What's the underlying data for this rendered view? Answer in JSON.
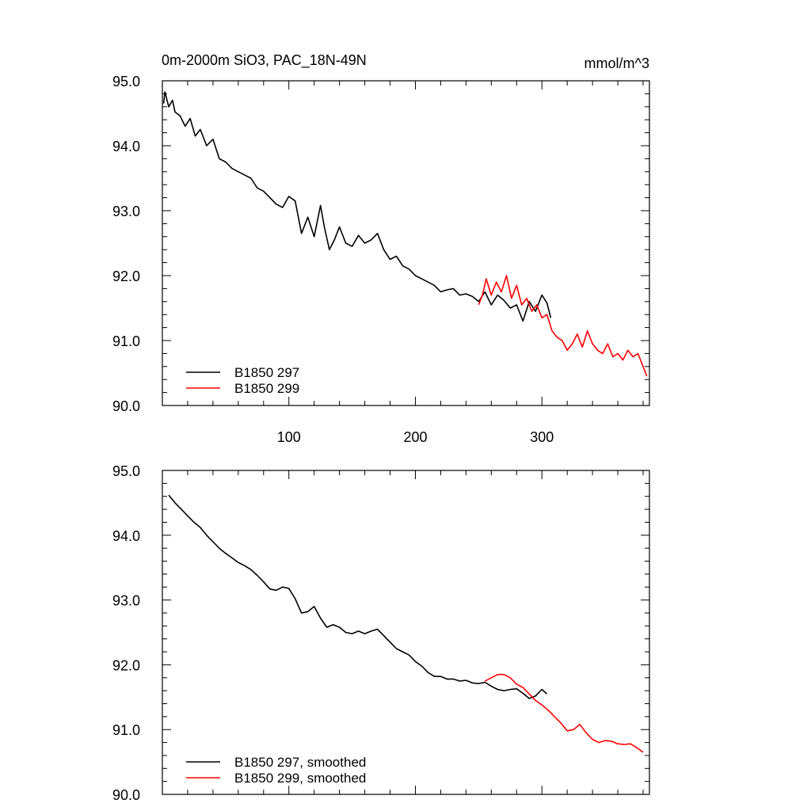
{
  "figure": {
    "title_left": "0m-2000m SiO3, PAC_18N-49N",
    "title_right": "mmol/m^3"
  },
  "chart_data": [
    {
      "type": "line",
      "title": "0m-2000m SiO3, PAC_18N-49N",
      "units": "mmol/m^3",
      "xlabel": "",
      "ylabel": "",
      "xlim": [
        0,
        385
      ],
      "ylim": [
        90.0,
        95.0
      ],
      "xticks": [
        100,
        200,
        300
      ],
      "xtick_labels": [
        "100",
        "200",
        "300"
      ],
      "yticks": [
        90.0,
        91.0,
        92.0,
        93.0,
        94.0,
        95.0
      ],
      "ytick_labels": [
        "90.0",
        "91.0",
        "92.0",
        "93.0",
        "94.0",
        "95.0"
      ],
      "legend_position": "bottom-left",
      "series": [
        {
          "name": "B1850 297",
          "color": "#000000",
          "x": [
            1,
            2,
            5,
            8,
            10,
            14,
            18,
            22,
            26,
            30,
            35,
            40,
            45,
            50,
            55,
            60,
            65,
            70,
            75,
            80,
            85,
            90,
            95,
            100,
            105,
            110,
            115,
            120,
            125,
            128,
            132,
            136,
            140,
            145,
            150,
            155,
            160,
            165,
            170,
            175,
            180,
            185,
            190,
            195,
            200,
            205,
            210,
            215,
            220,
            225,
            230,
            235,
            240,
            245,
            250,
            255,
            260,
            265,
            270,
            275,
            280,
            285,
            290,
            295,
            300,
            304,
            307
          ],
          "values": [
            94.65,
            94.83,
            94.6,
            94.7,
            94.52,
            94.46,
            94.3,
            94.42,
            94.15,
            94.25,
            94.0,
            94.1,
            93.8,
            93.75,
            93.65,
            93.6,
            93.55,
            93.5,
            93.35,
            93.3,
            93.2,
            93.1,
            93.05,
            93.22,
            93.15,
            92.65,
            92.9,
            92.6,
            93.08,
            92.75,
            92.4,
            92.55,
            92.75,
            92.5,
            92.45,
            92.62,
            92.5,
            92.55,
            92.65,
            92.4,
            92.25,
            92.3,
            92.15,
            92.1,
            92.0,
            91.95,
            91.9,
            91.85,
            91.75,
            91.78,
            91.8,
            91.7,
            91.72,
            91.68,
            91.6,
            91.75,
            91.55,
            91.7,
            91.62,
            91.5,
            91.55,
            91.3,
            91.6,
            91.45,
            91.7,
            91.58,
            91.35
          ]
        },
        {
          "name": "B1850 299",
          "color": "#ff0000",
          "x": [
            250,
            253,
            256,
            260,
            264,
            268,
            272,
            276,
            280,
            284,
            288,
            292,
            296,
            300,
            304,
            308,
            312,
            316,
            320,
            324,
            328,
            332,
            336,
            340,
            344,
            348,
            352,
            356,
            360,
            364,
            368,
            372,
            376,
            380,
            383
          ],
          "values": [
            91.55,
            91.7,
            91.95,
            91.7,
            91.9,
            91.75,
            92.0,
            91.65,
            91.85,
            91.55,
            91.65,
            91.45,
            91.55,
            91.35,
            91.4,
            91.15,
            91.05,
            91.0,
            90.85,
            90.95,
            91.1,
            90.9,
            91.15,
            90.95,
            90.85,
            90.8,
            90.95,
            90.75,
            90.8,
            90.7,
            90.85,
            90.75,
            90.8,
            90.6,
            90.45
          ]
        }
      ]
    },
    {
      "type": "line",
      "title": "",
      "xlabel": "",
      "ylabel": "",
      "xlim": [
        0,
        385
      ],
      "ylim": [
        90.0,
        95.0
      ],
      "yticks": [
        90.0,
        91.0,
        92.0,
        93.0,
        94.0,
        95.0
      ],
      "ytick_labels": [
        "90.0",
        "91.0",
        "92.0",
        "93.0",
        "94.0",
        "95.0"
      ],
      "legend_position": "bottom-left",
      "series": [
        {
          "name": "B1850 297, smoothed",
          "color": "#000000",
          "x": [
            5,
            10,
            15,
            20,
            25,
            30,
            35,
            40,
            45,
            50,
            55,
            60,
            65,
            70,
            75,
            80,
            85,
            90,
            95,
            100,
            105,
            110,
            115,
            120,
            125,
            130,
            135,
            140,
            145,
            150,
            155,
            160,
            165,
            170,
            175,
            180,
            185,
            190,
            195,
            200,
            205,
            210,
            215,
            220,
            225,
            230,
            235,
            240,
            245,
            250,
            255,
            260,
            265,
            270,
            275,
            280,
            285,
            290,
            295,
            300,
            304
          ],
          "values": [
            94.62,
            94.5,
            94.4,
            94.3,
            94.2,
            94.12,
            94.0,
            93.9,
            93.8,
            93.72,
            93.65,
            93.58,
            93.53,
            93.47,
            93.38,
            93.28,
            93.17,
            93.15,
            93.2,
            93.18,
            93.02,
            92.8,
            92.82,
            92.9,
            92.72,
            92.58,
            92.62,
            92.58,
            92.5,
            92.48,
            92.52,
            92.48,
            92.52,
            92.55,
            92.45,
            92.35,
            92.25,
            92.2,
            92.15,
            92.05,
            91.98,
            91.88,
            91.82,
            91.82,
            91.78,
            91.78,
            91.75,
            91.76,
            91.72,
            91.71,
            91.73,
            91.67,
            91.62,
            91.6,
            91.62,
            91.63,
            91.56,
            91.48,
            91.52,
            91.62,
            91.55
          ]
        },
        {
          "name": "B1850 299, smoothed",
          "color": "#ff0000",
          "x": [
            255,
            260,
            265,
            270,
            275,
            280,
            285,
            290,
            295,
            300,
            305,
            310,
            315,
            320,
            325,
            330,
            335,
            340,
            345,
            350,
            355,
            360,
            365,
            370,
            375,
            380
          ],
          "values": [
            91.75,
            91.8,
            91.85,
            91.85,
            91.8,
            91.7,
            91.65,
            91.55,
            91.45,
            91.38,
            91.3,
            91.2,
            91.1,
            90.98,
            91.0,
            91.08,
            90.95,
            90.85,
            90.8,
            90.83,
            90.82,
            90.78,
            90.77,
            90.78,
            90.72,
            90.65
          ]
        }
      ]
    }
  ]
}
